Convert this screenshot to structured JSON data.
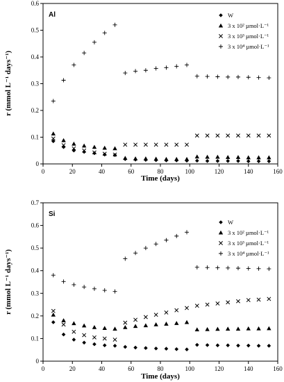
{
  "chart_data": [
    {
      "type": "scatter",
      "panel_label": "Al",
      "xlabel": "Time (days)",
      "ylabel": "r (mmol L⁻¹ days⁻¹)",
      "xlim": [
        0,
        160
      ],
      "ylim": [
        0,
        0.6
      ],
      "xticks": [
        0,
        20,
        40,
        60,
        80,
        100,
        120,
        140,
        160
      ],
      "yticks": [
        0,
        0.1,
        0.2,
        0.3,
        0.4,
        0.5,
        0.6
      ],
      "ytick_labels": [
        "0",
        "0.1",
        "0.2",
        "0.3",
        "0.4",
        "0.5",
        "0.6"
      ],
      "grid": false,
      "legend_position": "top-right",
      "series": [
        {
          "name": "W",
          "marker": "diamond",
          "x": [
            7,
            14,
            21,
            28,
            35,
            42,
            49,
            56,
            63,
            70,
            77,
            84,
            91,
            98,
            105,
            112,
            119,
            126,
            133,
            140,
            147,
            154
          ],
          "y": [
            0.085,
            0.063,
            0.05,
            0.045,
            0.04,
            0.035,
            0.033,
            0.018,
            0.016,
            0.015,
            0.014,
            0.013,
            0.013,
            0.012,
            0.012,
            0.011,
            0.011,
            0.011,
            0.011,
            0.01,
            0.01,
            0.01
          ]
        },
        {
          "name": "3 x 10² µmol·L⁻¹",
          "marker": "triangle",
          "x": [
            7,
            14,
            21,
            28,
            35,
            42,
            49,
            56,
            63,
            70,
            77,
            84,
            91,
            98,
            105,
            112,
            119,
            126,
            133,
            140,
            147,
            154
          ],
          "y": [
            0.113,
            0.088,
            0.075,
            0.068,
            0.063,
            0.06,
            0.058,
            0.022,
            0.02,
            0.02,
            0.019,
            0.018,
            0.018,
            0.018,
            0.027,
            0.026,
            0.026,
            0.025,
            0.025,
            0.024,
            0.024,
            0.024
          ]
        },
        {
          "name": "3 x 10³ µmol·L⁻¹",
          "marker": "x",
          "x": [
            7,
            14,
            21,
            28,
            35,
            42,
            49,
            56,
            63,
            70,
            77,
            84,
            91,
            98,
            105,
            112,
            119,
            126,
            133,
            140,
            147,
            154
          ],
          "y": [
            0.095,
            0.07,
            0.058,
            0.05,
            0.043,
            0.038,
            0.035,
            0.072,
            0.072,
            0.072,
            0.072,
            0.072,
            0.072,
            0.072,
            0.106,
            0.106,
            0.106,
            0.106,
            0.106,
            0.106,
            0.106,
            0.106
          ]
        },
        {
          "name": "3 x 10⁴ µmol·L⁻¹",
          "marker": "plus",
          "x": [
            7,
            14,
            21,
            28,
            35,
            42,
            49,
            56,
            63,
            70,
            77,
            84,
            91,
            98,
            105,
            112,
            119,
            126,
            133,
            140,
            147,
            154
          ],
          "y": [
            0.235,
            0.313,
            0.37,
            0.415,
            0.455,
            0.49,
            0.52,
            0.34,
            0.347,
            0.35,
            0.357,
            0.36,
            0.365,
            0.37,
            0.328,
            0.327,
            0.326,
            0.325,
            0.325,
            0.324,
            0.323,
            0.322
          ]
        }
      ]
    },
    {
      "type": "scatter",
      "panel_label": "Si",
      "xlabel": "Time (days)",
      "ylabel": "r (mmol L⁻¹ days⁻¹)",
      "xlim": [
        0,
        160
      ],
      "ylim": [
        0,
        0.7
      ],
      "xticks": [
        0,
        20,
        40,
        60,
        80,
        100,
        120,
        140,
        160
      ],
      "yticks": [
        0,
        0.1,
        0.2,
        0.3,
        0.4,
        0.5,
        0.6,
        0.7
      ],
      "ytick_labels": [
        "0",
        "0.1",
        "0.2",
        "0.3",
        "0.4",
        "0.5",
        "0.6",
        "0.7"
      ],
      "grid": false,
      "legend_position": "top-right",
      "series": [
        {
          "name": "W",
          "marker": "diamond",
          "x": [
            7,
            14,
            21,
            28,
            35,
            42,
            49,
            56,
            63,
            70,
            77,
            84,
            91,
            98,
            105,
            112,
            119,
            126,
            133,
            140,
            147,
            154
          ],
          "y": [
            0.172,
            0.118,
            0.095,
            0.082,
            0.075,
            0.07,
            0.068,
            0.063,
            0.06,
            0.058,
            0.056,
            0.055,
            0.053,
            0.052,
            0.072,
            0.071,
            0.07,
            0.07,
            0.069,
            0.069,
            0.068,
            0.068
          ]
        },
        {
          "name": "3 x 10² µmol·L⁻¹",
          "marker": "triangle",
          "x": [
            7,
            14,
            21,
            28,
            35,
            42,
            49,
            56,
            63,
            70,
            77,
            84,
            91,
            98,
            105,
            112,
            119,
            126,
            133,
            140,
            147,
            154
          ],
          "y": [
            0.205,
            0.18,
            0.167,
            0.157,
            0.15,
            0.146,
            0.143,
            0.15,
            0.155,
            0.158,
            0.162,
            0.165,
            0.168,
            0.172,
            0.14,
            0.141,
            0.142,
            0.143,
            0.143,
            0.144,
            0.144,
            0.145
          ]
        },
        {
          "name": "3 x 10³ µmol·L⁻¹",
          "marker": "x",
          "x": [
            7,
            14,
            21,
            28,
            35,
            42,
            49,
            56,
            63,
            70,
            77,
            84,
            91,
            98,
            105,
            112,
            119,
            126,
            133,
            140,
            147,
            154
          ],
          "y": [
            0.222,
            0.162,
            0.13,
            0.115,
            0.105,
            0.1,
            0.095,
            0.17,
            0.183,
            0.195,
            0.205,
            0.215,
            0.225,
            0.235,
            0.245,
            0.25,
            0.255,
            0.26,
            0.265,
            0.27,
            0.272,
            0.275
          ]
        },
        {
          "name": "3 x 10⁴ µmol·L⁻¹",
          "marker": "plus",
          "x": [
            7,
            14,
            21,
            28,
            35,
            42,
            49,
            56,
            63,
            70,
            77,
            84,
            91,
            98,
            105,
            112,
            119,
            126,
            133,
            140,
            147,
            154
          ],
          "y": [
            0.38,
            0.352,
            0.338,
            0.328,
            0.32,
            0.313,
            0.308,
            0.453,
            0.478,
            0.5,
            0.518,
            0.535,
            0.553,
            0.57,
            0.415,
            0.414,
            0.413,
            0.412,
            0.411,
            0.41,
            0.409,
            0.408
          ]
        }
      ]
    }
  ]
}
